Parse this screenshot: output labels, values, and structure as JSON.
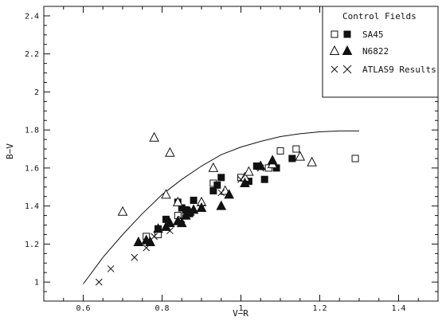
{
  "chart_data": {
    "type": "scatter",
    "xlabel": "V−R",
    "ylabel": "B−V",
    "xlim": [
      0.5,
      1.5
    ],
    "ylim": [
      0.9,
      2.45
    ],
    "x_ticks": [
      "0.6",
      "0.8",
      "1",
      "1.2",
      "1.4"
    ],
    "y_ticks": [
      "1",
      "1.2",
      "1.4",
      "1.6",
      "1.8",
      "2",
      "2.2",
      "2.4"
    ],
    "grid": false,
    "legend": {
      "position": "top-right",
      "title": "Control Fields",
      "entries": [
        {
          "label": "SA45",
          "markers": [
            "open-square",
            "filled-square"
          ]
        },
        {
          "label": "N6822",
          "markers": [
            "open-triangle",
            "filled-triangle"
          ]
        },
        {
          "label": "ATLAS9 Results",
          "markers": [
            "small-cross",
            "large-cross"
          ]
        }
      ]
    },
    "series": [
      {
        "name": "SA45",
        "marker": "open-square",
        "points": [
          [
            0.76,
            1.24
          ],
          [
            0.79,
            1.25
          ],
          [
            0.84,
            1.35
          ],
          [
            0.86,
            1.36
          ],
          [
            0.93,
            1.52
          ],
          [
            1.0,
            1.55
          ],
          [
            1.07,
            1.6
          ],
          [
            1.1,
            1.69
          ],
          [
            1.14,
            1.7
          ],
          [
            1.29,
            1.65
          ]
        ]
      },
      {
        "name": "SA45",
        "marker": "filled-square",
        "points": [
          [
            0.79,
            1.28
          ],
          [
            0.81,
            1.33
          ],
          [
            0.84,
            1.42
          ],
          [
            0.85,
            1.39
          ],
          [
            0.86,
            1.38
          ],
          [
            0.87,
            1.36
          ],
          [
            0.88,
            1.43
          ],
          [
            0.93,
            1.48
          ],
          [
            0.94,
            1.51
          ],
          [
            0.95,
            1.55
          ],
          [
            1.02,
            1.53
          ],
          [
            1.04,
            1.61
          ],
          [
            1.06,
            1.54
          ],
          [
            1.09,
            1.6
          ],
          [
            1.13,
            1.65
          ]
        ]
      },
      {
        "name": "N6822",
        "marker": "open-triangle",
        "points": [
          [
            0.7,
            1.37
          ],
          [
            0.78,
            1.76
          ],
          [
            0.81,
            1.46
          ],
          [
            0.82,
            1.68
          ],
          [
            0.84,
            1.42
          ],
          [
            0.86,
            1.35
          ],
          [
            0.9,
            1.42
          ],
          [
            0.93,
            1.6
          ],
          [
            0.96,
            1.48
          ],
          [
            1.01,
            1.55
          ],
          [
            1.02,
            1.58
          ],
          [
            1.08,
            1.62
          ],
          [
            1.15,
            1.66
          ],
          [
            1.18,
            1.63
          ]
        ]
      },
      {
        "name": "N6822",
        "marker": "filled-triangle",
        "points": [
          [
            0.74,
            1.21
          ],
          [
            0.76,
            1.22
          ],
          [
            0.77,
            1.21
          ],
          [
            0.79,
            1.28
          ],
          [
            0.81,
            1.29
          ],
          [
            0.82,
            1.31
          ],
          [
            0.84,
            1.32
          ],
          [
            0.85,
            1.31
          ],
          [
            0.86,
            1.35
          ],
          [
            0.87,
            1.37
          ],
          [
            0.88,
            1.38
          ],
          [
            0.9,
            1.39
          ],
          [
            0.95,
            1.4
          ],
          [
            0.97,
            1.46
          ],
          [
            1.01,
            1.52
          ],
          [
            1.05,
            1.61
          ],
          [
            1.08,
            1.64
          ]
        ]
      },
      {
        "name": "ATLAS9 Results",
        "marker": "cross",
        "points": [
          [
            0.64,
            1.0
          ],
          [
            0.67,
            1.07
          ],
          [
            0.73,
            1.13
          ],
          [
            0.76,
            1.18
          ],
          [
            0.78,
            1.24
          ],
          [
            0.82,
            1.27
          ],
          [
            0.85,
            1.33
          ],
          [
            0.9,
            1.39
          ],
          [
            0.95,
            1.47
          ],
          [
            1.0,
            1.54
          ],
          [
            1.05,
            1.6
          ]
        ]
      }
    ],
    "curve": {
      "x": [
        0.6,
        0.65,
        0.7,
        0.75,
        0.8,
        0.85,
        0.9,
        0.95,
        1.0,
        1.05,
        1.1,
        1.15,
        1.2,
        1.25,
        1.3
      ],
      "y": [
        0.99,
        1.13,
        1.25,
        1.36,
        1.46,
        1.54,
        1.61,
        1.67,
        1.71,
        1.74,
        1.765,
        1.78,
        1.79,
        1.795,
        1.795
      ]
    }
  }
}
